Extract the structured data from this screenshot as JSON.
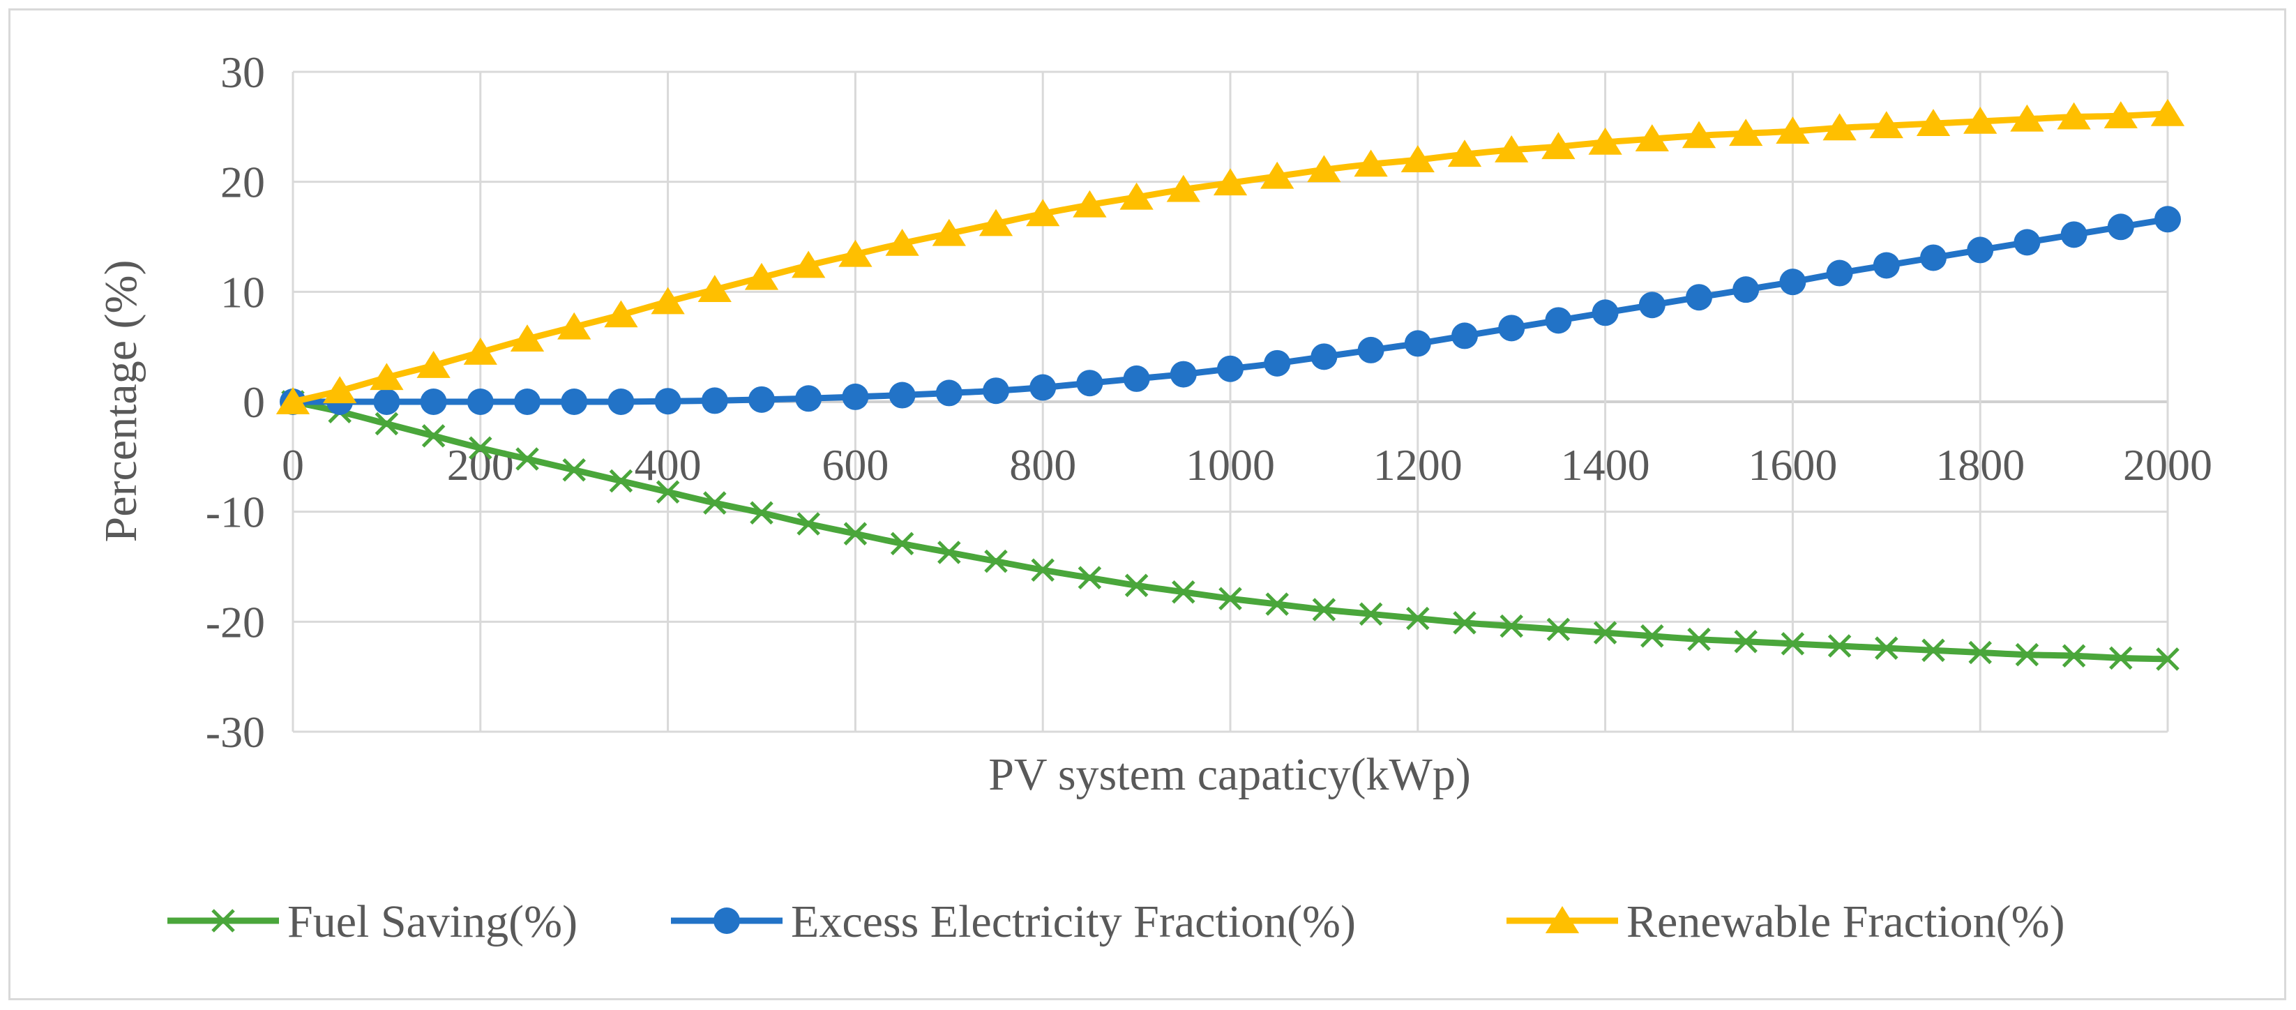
{
  "chart_data": {
    "type": "line",
    "title": "",
    "xlabel": "PV system capaticy(kWp)",
    "ylabel": "Percentage (%)",
    "xlim": [
      0,
      2000
    ],
    "ylim": [
      -30,
      30
    ],
    "x_ticks": [
      "0",
      "200",
      "400",
      "600",
      "800",
      "1000",
      "1200",
      "1400",
      "1600",
      "1800",
      "2000"
    ],
    "y_ticks": [
      "30",
      "20",
      "10",
      "0",
      "-10",
      "-20",
      "-30"
    ],
    "grid": true,
    "legend_position": "bottom",
    "x": [
      0,
      50,
      100,
      150,
      200,
      250,
      300,
      350,
      400,
      450,
      500,
      550,
      600,
      650,
      700,
      750,
      800,
      850,
      900,
      950,
      1000,
      1050,
      1100,
      1150,
      1200,
      1250,
      1300,
      1350,
      1400,
      1450,
      1500,
      1550,
      1600,
      1650,
      1700,
      1750,
      1800,
      1850,
      1900,
      1950,
      2000
    ],
    "series": [
      {
        "name": "Fuel Saving(%)",
        "color": "#4aa63b",
        "marker": "x",
        "values": [
          0,
          -0.9,
          -2.0,
          -3.1,
          -4.2,
          -5.2,
          -6.2,
          -7.2,
          -8.2,
          -9.2,
          -10.1,
          -11.1,
          -12.0,
          -12.9,
          -13.7,
          -14.5,
          -15.3,
          -16.0,
          -16.7,
          -17.3,
          -17.9,
          -18.4,
          -18.9,
          -19.3,
          -19.7,
          -20.1,
          -20.4,
          -20.7,
          -21.0,
          -21.3,
          -21.6,
          -21.8,
          -22.0,
          -22.2,
          -22.4,
          -22.6,
          -22.8,
          -23.0,
          -23.1,
          -23.3,
          -23.4
        ]
      },
      {
        "name": "Excess Electricity Fraction(%)",
        "color": "#2273c7",
        "marker": "circle",
        "values": [
          0,
          0,
          0,
          0,
          0,
          0,
          0,
          0,
          0.05,
          0.1,
          0.2,
          0.3,
          0.45,
          0.6,
          0.8,
          1.0,
          1.3,
          1.7,
          2.1,
          2.5,
          3.0,
          3.5,
          4.1,
          4.7,
          5.3,
          6.0,
          6.7,
          7.4,
          8.1,
          8.8,
          9.5,
          10.2,
          10.9,
          11.7,
          12.4,
          13.1,
          13.8,
          14.5,
          15.2,
          15.9,
          16.6
        ]
      },
      {
        "name": "Renewable Fraction(%)",
        "color": "#ffbf00",
        "marker": "triangle",
        "values": [
          0,
          1.0,
          2.2,
          3.3,
          4.5,
          5.7,
          6.8,
          7.9,
          9.1,
          10.2,
          11.3,
          12.4,
          13.4,
          14.4,
          15.3,
          16.2,
          17.1,
          17.9,
          18.6,
          19.3,
          19.9,
          20.5,
          21.1,
          21.6,
          22.0,
          22.5,
          22.9,
          23.2,
          23.6,
          23.9,
          24.2,
          24.4,
          24.6,
          24.9,
          25.1,
          25.3,
          25.5,
          25.7,
          25.9,
          26.0,
          26.2
        ]
      }
    ]
  }
}
